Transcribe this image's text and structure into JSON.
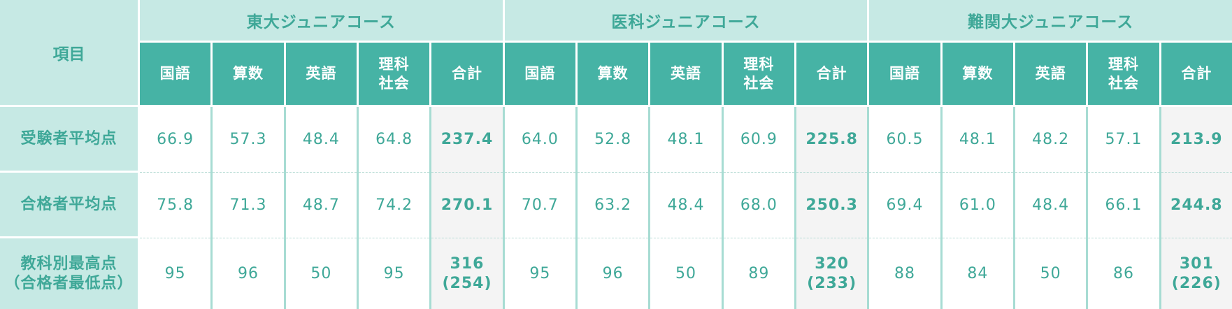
{
  "table": {
    "corner_label": "項目",
    "groups": [
      {
        "name": "東大ジュニアコース",
        "subjects": [
          "国語",
          "算数",
          "英語",
          "理科\n社会",
          "合計"
        ]
      },
      {
        "name": "医科ジュニアコース",
        "subjects": [
          "国語",
          "算数",
          "英語",
          "理科\n社会",
          "合計"
        ]
      },
      {
        "name": "難関大ジュニアコース",
        "subjects": [
          "国語",
          "算数",
          "英語",
          "理科\n社会",
          "合計"
        ]
      }
    ],
    "rows": [
      {
        "label": "受験者平均点",
        "values": [
          "66.9",
          "57.3",
          "48.4",
          "64.8",
          "237.4",
          "64.0",
          "52.8",
          "48.1",
          "60.9",
          "225.8",
          "60.5",
          "48.1",
          "48.2",
          "57.1",
          "213.9"
        ]
      },
      {
        "label": "合格者平均点",
        "values": [
          "75.8",
          "71.3",
          "48.7",
          "74.2",
          "270.1",
          "70.7",
          "63.2",
          "48.4",
          "68.0",
          "250.3",
          "69.4",
          "61.0",
          "48.4",
          "66.1",
          "244.8"
        ]
      },
      {
        "label": "教科別最高点\n（合格者最低点）",
        "values": [
          "95",
          "96",
          "50",
          "95",
          "316\n(254)",
          "95",
          "96",
          "50",
          "89",
          "320\n(233)",
          "88",
          "84",
          "50",
          "86",
          "301\n(226)"
        ]
      }
    ],
    "colors": {
      "header_light": "#c6e9e4",
      "header_dark": "#46b3a5",
      "text_teal": "#3fa898",
      "total_bg": "#f4f4f4"
    }
  }
}
